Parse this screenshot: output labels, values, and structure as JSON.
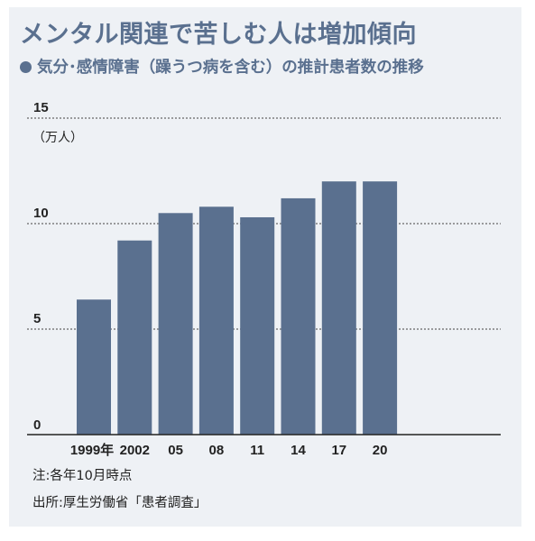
{
  "title": "メンタル関連で苦しむ人は増加傾向",
  "subtitle": "気分･感情障害（躁うつ病を含む）の推計患者数の推移",
  "colors": {
    "bar": "#5a708f",
    "title": "#5a708f",
    "panel_background": "#eef1f5"
  },
  "chart_data": {
    "type": "bar",
    "categories": [
      "1999年",
      "2002",
      "05",
      "08",
      "11",
      "14",
      "17",
      "20"
    ],
    "values": [
      6.4,
      9.2,
      10.5,
      10.8,
      10.3,
      11.2,
      12.0,
      12.0
    ],
    "y_unit_label": "（万人）",
    "ylim": [
      0,
      15
    ],
    "yticks": [
      0,
      5,
      10,
      15
    ],
    "ytick_labels": [
      "0",
      "5",
      "10",
      "15"
    ],
    "grid": "dashed horizontal at 5, 10, 15",
    "legend": "none"
  },
  "notes": [
    "注:各年10月時点",
    "出所:厚生労働省「患者調査」"
  ]
}
